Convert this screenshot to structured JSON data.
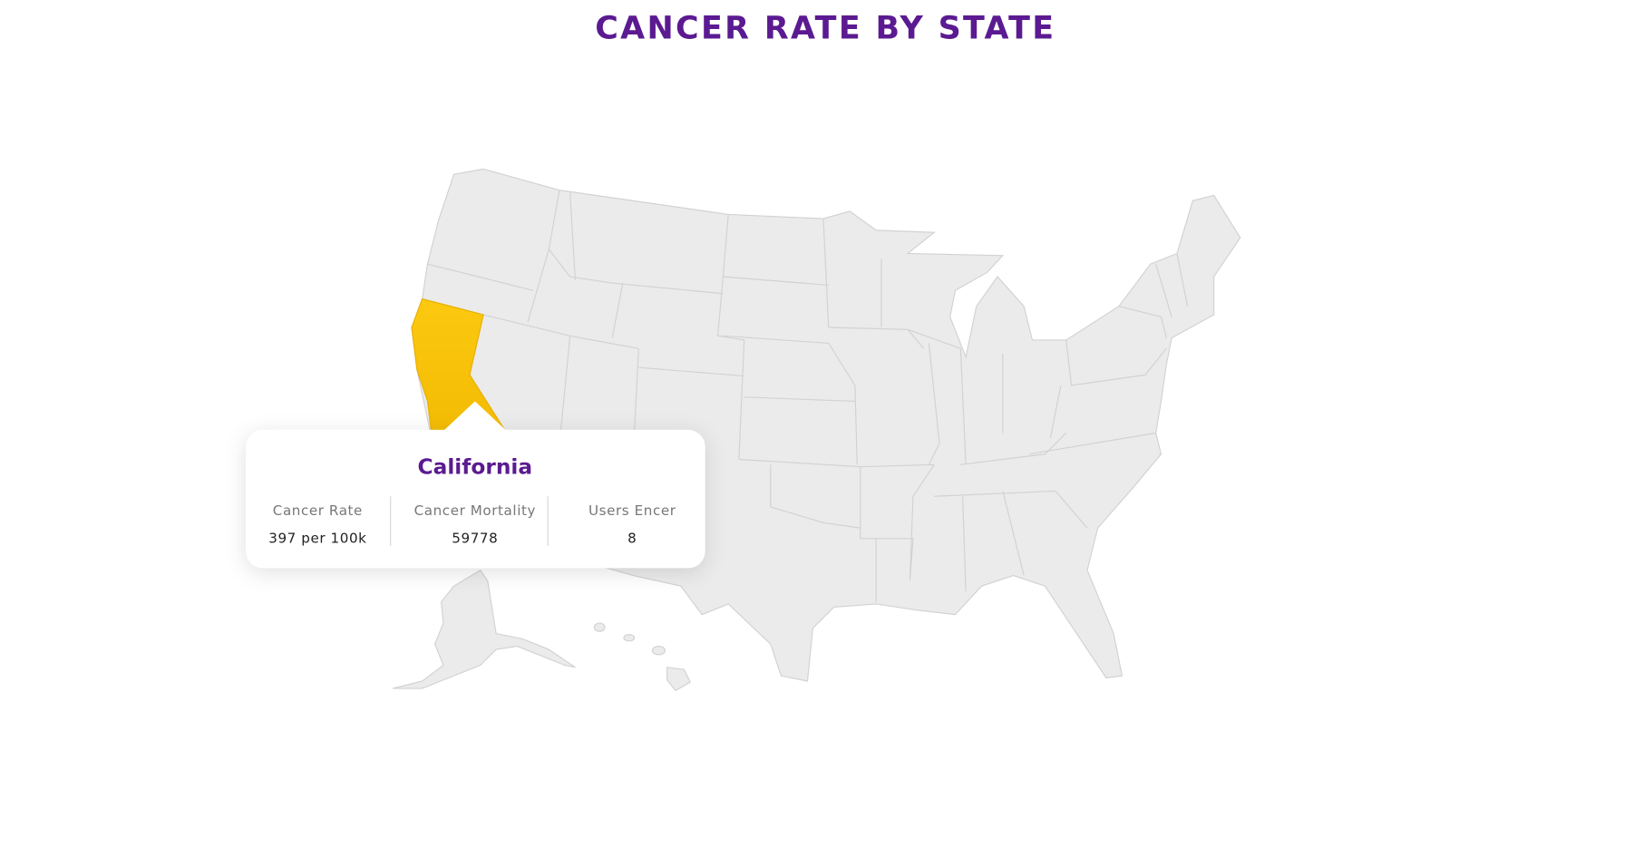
{
  "title": "CANCER RATE BY STATE",
  "tooltip": {
    "state": "California",
    "stats": [
      {
        "label": "Cancer Rate",
        "value": "397 per 100k"
      },
      {
        "label": "Cancer Mortality",
        "value": 59778
      },
      {
        "label": "Users Encer",
        "value": 8
      }
    ]
  }
}
